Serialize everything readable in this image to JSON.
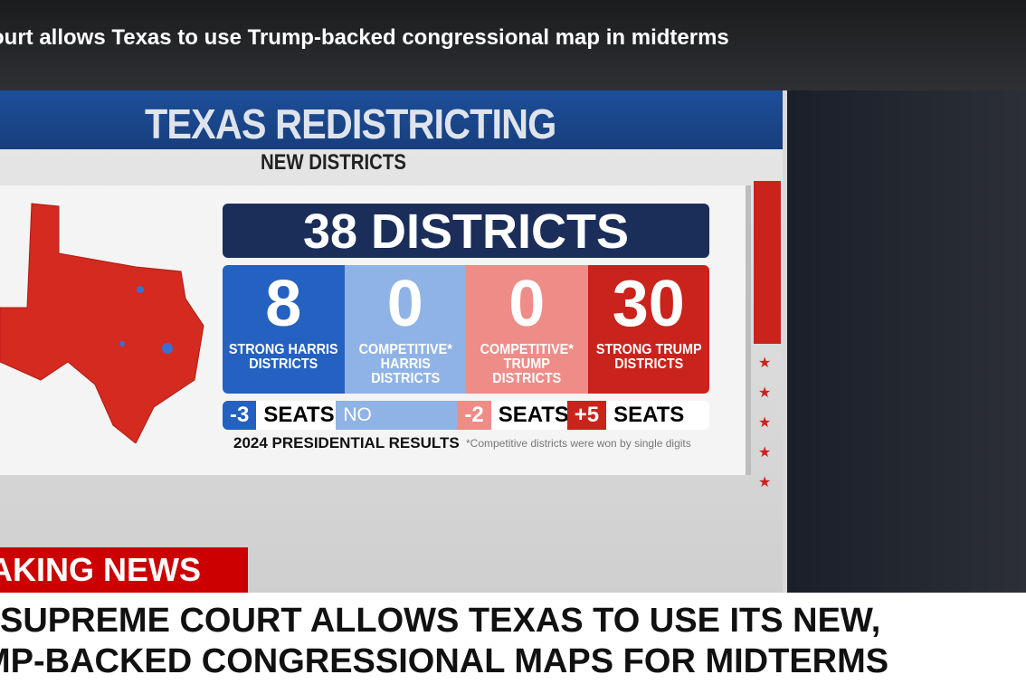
{
  "page": {
    "title": "ourt allows Texas to use Trump-backed congressional map in midterms"
  },
  "graphic": {
    "banner": "TEXAS REDISTRICTING",
    "subtitle": "NEW DISTRICTS",
    "total": "38 DISTRICTS",
    "cells": [
      {
        "value": "8",
        "label": "STRONG HARRIS DISTRICTS",
        "color": "#2461c0"
      },
      {
        "value": "0",
        "label": "COMPETITIVE* HARRIS DISTRICTS",
        "color": "#8fb3e6"
      },
      {
        "value": "0",
        "label": "COMPETITIVE* TRUMP DISTRICTS",
        "color": "#ee8c88"
      },
      {
        "value": "30",
        "label": "STRONG TRUMP DISTRICTS",
        "color": "#c9231c"
      }
    ],
    "changes": [
      {
        "value": "-3",
        "unit": "SEATS"
      },
      {
        "value": "NO CHANGE"
      },
      {
        "value": "-2",
        "unit": "SEATS"
      },
      {
        "value": "+5",
        "unit": "SEATS"
      }
    ],
    "results_label": "2024 PRESIDENTIAL RESULTS",
    "footnote": "*Competitive districts were won by single digits"
  },
  "ticker": {
    "breaking": "AKING NEWS",
    "line1": "SUPREME COURT ALLOWS TEXAS TO USE ITS NEW,",
    "line2": "MP-BACKED CONGRESSIONAL MAPS FOR MIDTERMS"
  }
}
